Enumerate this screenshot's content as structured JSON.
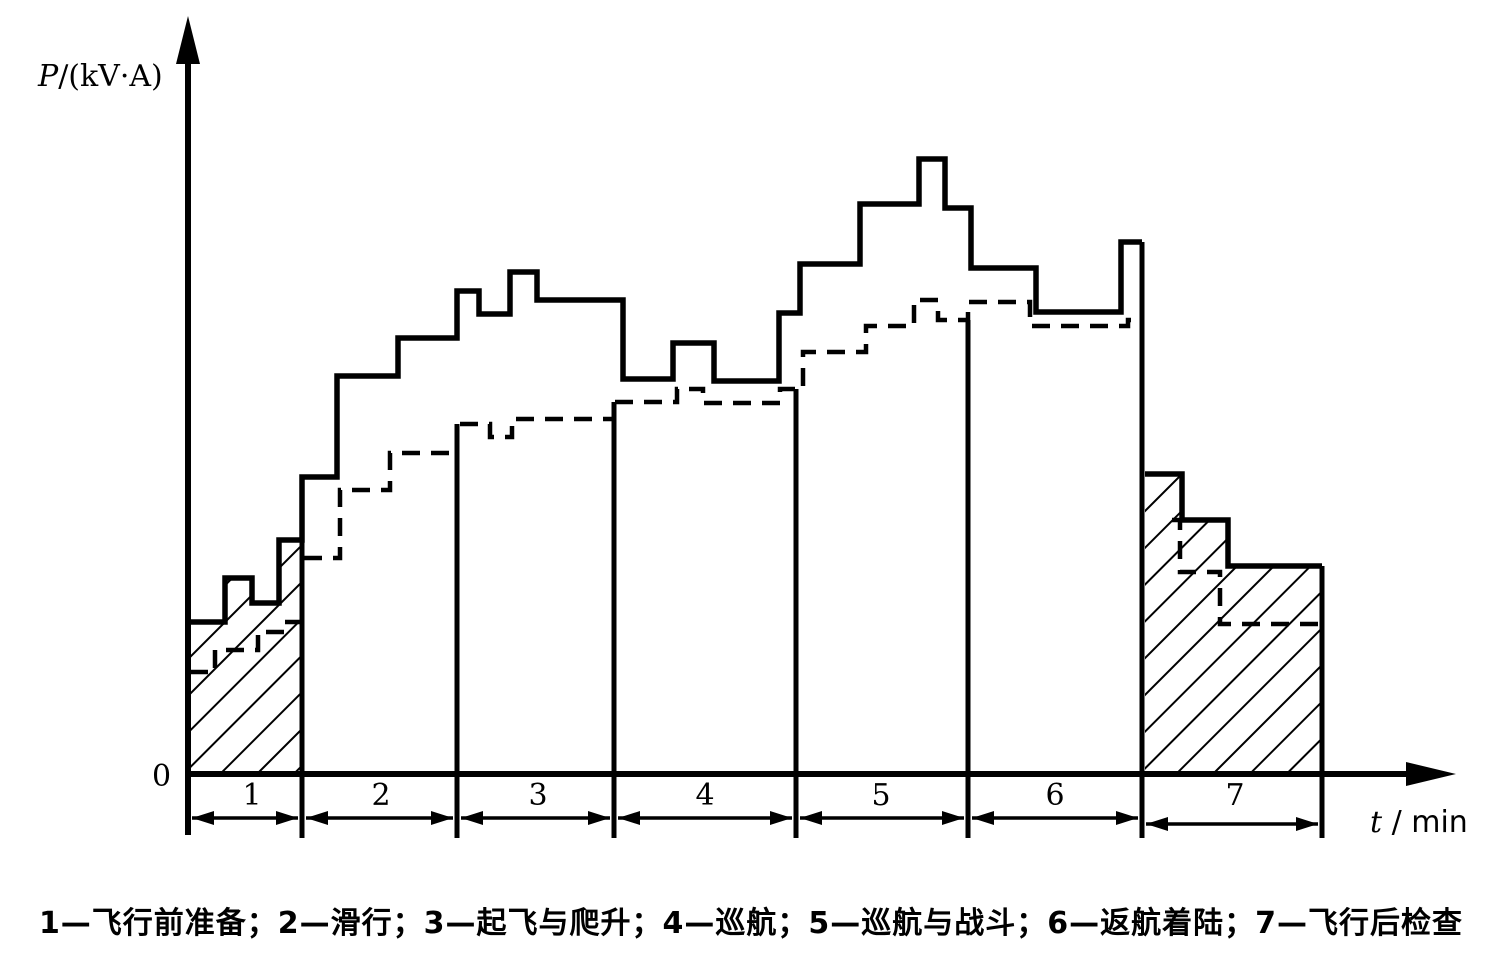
{
  "y_axis": {
    "symbol": "P",
    "unit": "/(kV·A)",
    "origin": "0"
  },
  "x_axis": {
    "symbol": "t",
    "unit": " / min"
  },
  "phases": [
    {
      "label": "1",
      "hatched": true
    },
    {
      "label": "2",
      "hatched": false
    },
    {
      "label": "3",
      "hatched": false
    },
    {
      "label": "4",
      "hatched": false
    },
    {
      "label": "5",
      "hatched": false
    },
    {
      "label": "6",
      "hatched": false
    },
    {
      "label": "7",
      "hatched": true
    }
  ],
  "caption": "1—飞行前准备；2—滑行；3—起飞与爬升；4—巡航；5—巡航与战斗；6—返航着陆；7—飞行后检查",
  "colors": {
    "line": "#000000",
    "background": "#ffffff"
  }
}
